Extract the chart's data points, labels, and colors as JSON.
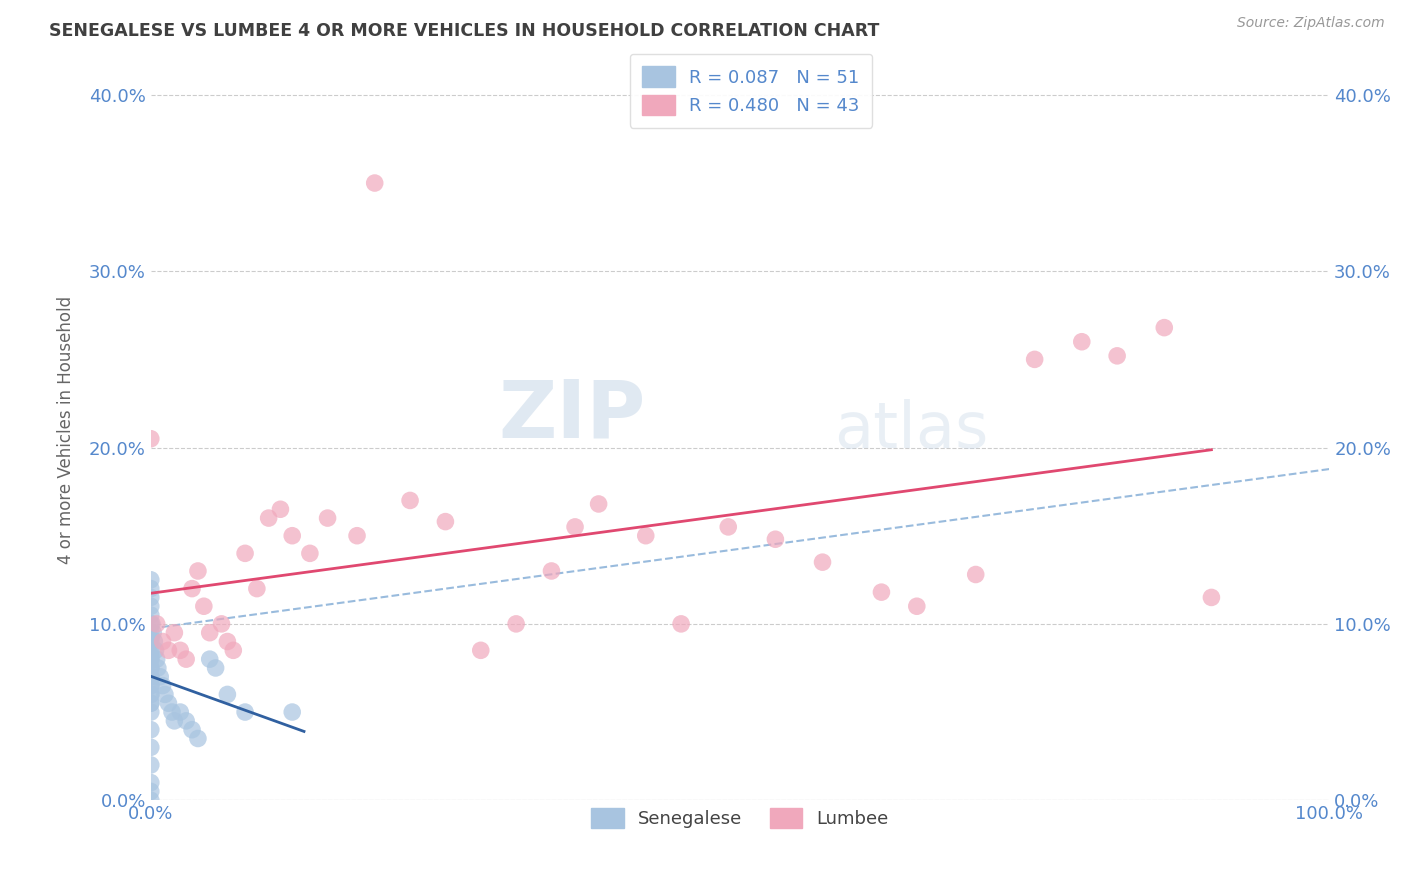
{
  "title": "SENEGALESE VS LUMBEE 4 OR MORE VEHICLES IN HOUSEHOLD CORRELATION CHART",
  "ylabel": "4 or more Vehicles in Household",
  "source_text": "Source: ZipAtlas.com",
  "watermark_top": "ZIP",
  "watermark_bottom": "atlas",
  "xlim": [
    0.0,
    1.0
  ],
  "ylim": [
    0.0,
    0.42
  ],
  "xticks": [
    0.0,
    0.5,
    1.0
  ],
  "xtick_labels": [
    "0.0%",
    "",
    "100.0%"
  ],
  "yticks": [
    0.0,
    0.1,
    0.2,
    0.3,
    0.4
  ],
  "ytick_labels": [
    "0.0%",
    "10.0%",
    "20.0%",
    "30.0%",
    "40.0%"
  ],
  "legend_text1": "R = 0.087   N = 51",
  "legend_text2": "R = 0.480   N = 43",
  "senegalese_color": "#a8c4e0",
  "lumbee_color": "#f0a8bc",
  "senegalese_line_color": "#3060a0",
  "lumbee_line_color": "#e04870",
  "dash_line_color": "#99bbdd",
  "background_color": "#ffffff",
  "grid_color": "#cccccc",
  "title_color": "#404040",
  "tick_color": "#5588cc",
  "legend_text_color": "#5588cc",
  "watermark_color": "#c8d8e8",
  "senegalese_x": [
    0.0,
    0.0,
    0.0,
    0.0,
    0.0,
    0.0,
    0.0,
    0.0,
    0.0,
    0.0,
    0.0,
    0.0,
    0.0,
    0.0,
    0.0,
    0.0,
    0.0,
    0.0,
    0.0,
    0.0,
    0.0,
    0.0,
    0.0,
    0.0,
    0.0,
    0.0,
    0.0,
    0.0,
    0.0,
    0.0,
    0.001,
    0.002,
    0.003,
    0.004,
    0.005,
    0.006,
    0.008,
    0.01,
    0.012,
    0.015,
    0.018,
    0.02,
    0.025,
    0.03,
    0.035,
    0.04,
    0.05,
    0.055,
    0.065,
    0.08,
    0.12
  ],
  "senegalese_y": [
    0.0,
    0.005,
    0.01,
    0.02,
    0.03,
    0.04,
    0.05,
    0.055,
    0.06,
    0.065,
    0.07,
    0.075,
    0.08,
    0.082,
    0.085,
    0.09,
    0.092,
    0.095,
    0.1,
    0.105,
    0.11,
    0.115,
    0.12,
    0.125,
    0.08,
    0.075,
    0.07,
    0.065,
    0.06,
    0.055,
    0.1,
    0.095,
    0.09,
    0.085,
    0.08,
    0.075,
    0.07,
    0.065,
    0.06,
    0.055,
    0.05,
    0.045,
    0.05,
    0.045,
    0.04,
    0.035,
    0.08,
    0.075,
    0.06,
    0.05,
    0.05
  ],
  "lumbee_x": [
    0.0,
    0.005,
    0.01,
    0.015,
    0.02,
    0.025,
    0.03,
    0.035,
    0.04,
    0.045,
    0.05,
    0.06,
    0.065,
    0.07,
    0.08,
    0.09,
    0.1,
    0.11,
    0.12,
    0.135,
    0.15,
    0.175,
    0.19,
    0.22,
    0.25,
    0.28,
    0.31,
    0.34,
    0.36,
    0.38,
    0.42,
    0.45,
    0.49,
    0.53,
    0.57,
    0.62,
    0.65,
    0.7,
    0.75,
    0.79,
    0.82,
    0.86,
    0.9
  ],
  "lumbee_y": [
    0.205,
    0.1,
    0.09,
    0.085,
    0.095,
    0.085,
    0.08,
    0.12,
    0.13,
    0.11,
    0.095,
    0.1,
    0.09,
    0.085,
    0.14,
    0.12,
    0.16,
    0.165,
    0.15,
    0.14,
    0.16,
    0.15,
    0.35,
    0.17,
    0.158,
    0.085,
    0.1,
    0.13,
    0.155,
    0.168,
    0.15,
    0.1,
    0.155,
    0.148,
    0.135,
    0.118,
    0.11,
    0.128,
    0.25,
    0.26,
    0.252,
    0.268,
    0.115
  ],
  "sen_trend_x0": 0.0,
  "sen_trend_x1": 0.5,
  "lum_trend_x0": 0.0,
  "lum_trend_x1": 0.9
}
